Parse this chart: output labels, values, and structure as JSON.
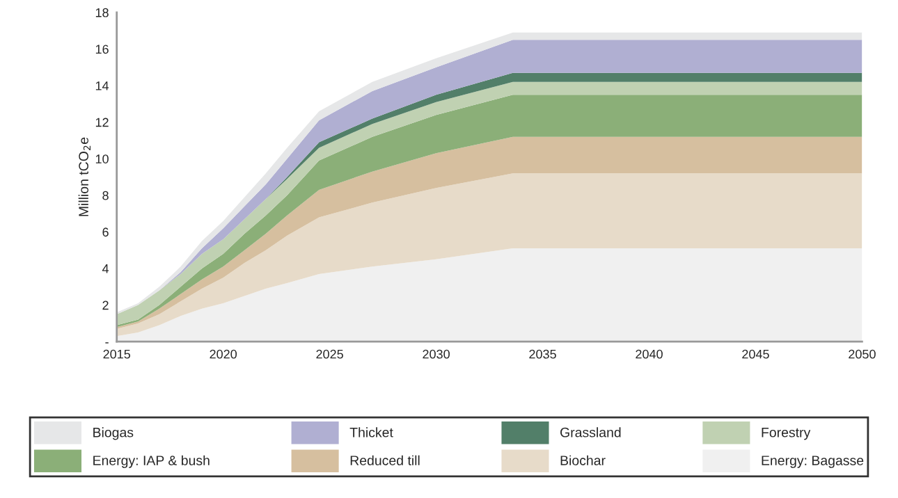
{
  "chart_data": {
    "type": "area",
    "stacked": true,
    "ylabel": "Million tCO$_{2}$e",
    "x": [
      2015,
      2016,
      2017,
      2018,
      2019,
      2020,
      2021,
      2022,
      2023,
      2024.5,
      2027,
      2030,
      2033.6,
      2050
    ],
    "series": [
      {
        "name": "Energy: Bagasse",
        "color": "#f0f0f0",
        "values": [
          0.3,
          0.5,
          0.9,
          1.4,
          1.8,
          2.1,
          2.5,
          2.9,
          3.2,
          3.7,
          4.1,
          4.5,
          5.1,
          5.1
        ]
      },
      {
        "name": "Biochar",
        "color": "#e7dbc9",
        "values": [
          0.4,
          0.5,
          0.6,
          0.8,
          1.1,
          1.4,
          1.8,
          2.1,
          2.6,
          3.1,
          3.5,
          3.9,
          4.1,
          4.1
        ]
      },
      {
        "name": "Reduced till",
        "color": "#d6bf9f",
        "values": [
          0.1,
          0.1,
          0.3,
          0.4,
          0.5,
          0.6,
          0.7,
          0.9,
          1.1,
          1.5,
          1.7,
          1.9,
          2.0,
          2.0
        ]
      },
      {
        "name": "Energy: IAP & bush",
        "color": "#8baf78",
        "values": [
          0.1,
          0.1,
          0.2,
          0.4,
          0.6,
          0.7,
          0.9,
          1.0,
          1.1,
          1.6,
          1.9,
          2.1,
          2.3,
          2.3
        ]
      },
      {
        "name": "Forestry",
        "color": "#c0d1b2",
        "values": [
          0.6,
          0.8,
          0.8,
          0.7,
          0.8,
          0.8,
          0.8,
          0.9,
          0.9,
          0.7,
          0.7,
          0.7,
          0.7,
          0.7
        ]
      },
      {
        "name": "Grassland",
        "color": "#527f69",
        "values": [
          0,
          0,
          0,
          0,
          0,
          0,
          0,
          0,
          0.1,
          0.3,
          0.3,
          0.4,
          0.5,
          0.5
        ]
      },
      {
        "name": "Thicket",
        "color": "#b0afd2",
        "values": [
          0,
          0,
          0,
          0.1,
          0.3,
          0.6,
          0.7,
          0.8,
          1.0,
          1.2,
          1.5,
          1.5,
          1.8,
          1.8
        ]
      },
      {
        "name": "Biogas",
        "color": "#e6e7e8",
        "values": [
          0.1,
          0.1,
          0.2,
          0.3,
          0.4,
          0.4,
          0.5,
          0.6,
          0.6,
          0.5,
          0.5,
          0.5,
          0.4,
          0.4
        ]
      }
    ],
    "xlim": [
      2015,
      2050
    ],
    "xticks": [
      2015,
      2020,
      2025,
      2030,
      2035,
      2040,
      2045,
      2050
    ],
    "ylim": [
      0,
      18
    ],
    "yticks": [
      {
        "value": 0,
        "label": "-"
      },
      2,
      4,
      6,
      8,
      10,
      12,
      14,
      16,
      18
    ],
    "grid": false,
    "legend": "bottom"
  }
}
